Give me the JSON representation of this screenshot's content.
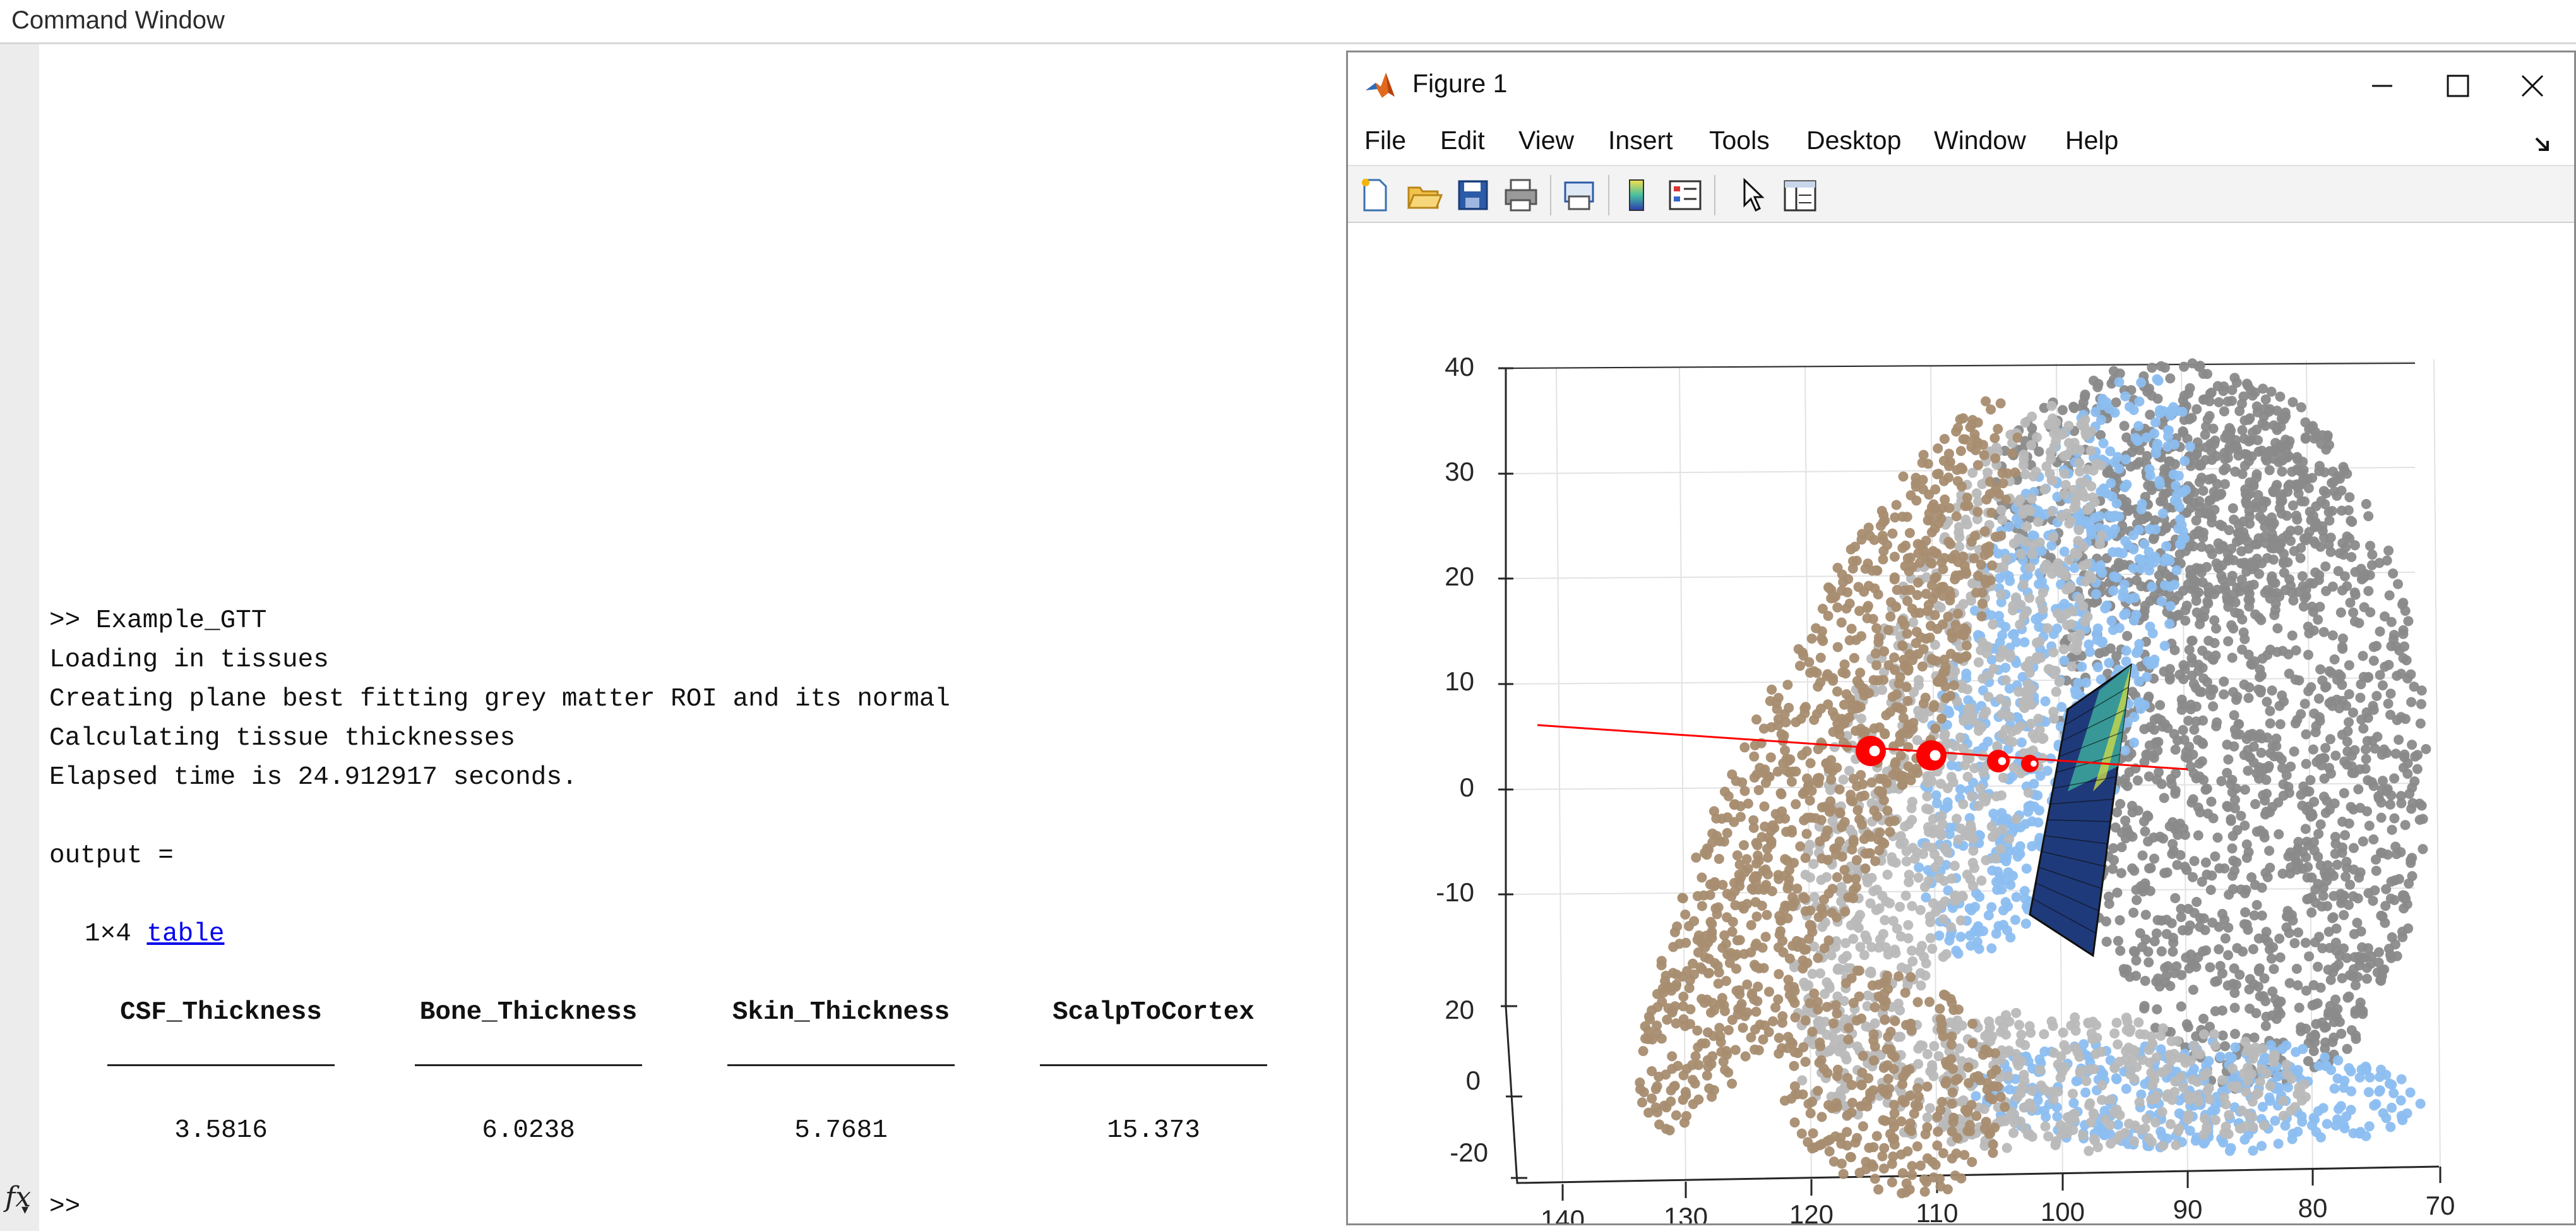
{
  "command_window": {
    "title": "Command Window",
    "lines": [
      ">> Example_GTT",
      "Loading in tissues",
      "Creating plane best fitting grey matter ROI and its normal",
      "Calculating tissue thicknesses",
      "Elapsed time is 24.912917 seconds.",
      "output ="
    ],
    "table_size": "1×4",
    "table_link": "table",
    "table": {
      "headers": [
        "CSF_Thickness",
        "Bone_Thickness",
        "Skin_Thickness",
        "ScalpToCortex"
      ],
      "values": [
        "3.5816",
        "6.0238",
        "5.7681",
        "15.373"
      ]
    },
    "prompt": ">>",
    "fx_icon": "function-browser-icon"
  },
  "figure": {
    "title": "Figure 1",
    "menu": [
      "File",
      "Edit",
      "View",
      "Insert",
      "Tools",
      "Desktop",
      "Window",
      "Help"
    ],
    "toolbar_icons": [
      "new-figure-icon",
      "open-file-icon",
      "save-icon",
      "print-icon",
      "print-preview-icon",
      "insert-colorbar-icon",
      "insert-legend-icon",
      "edit-plot-icon",
      "property-inspector-icon"
    ],
    "window_controls": [
      "minimize-icon",
      "maximize-icon",
      "close-icon"
    ],
    "axes": {
      "z_ticks": [
        "40",
        "30",
        "20",
        "10",
        "0",
        "-10"
      ],
      "y_ticks": [
        "20",
        "0",
        "-20"
      ],
      "x_ticks": [
        "140",
        "130",
        "120",
        "110",
        "100",
        "90",
        "80",
        "70"
      ]
    },
    "colors": {
      "skin": "#a88d70",
      "bone": "#b9b9b9",
      "csf": "#8cbef0",
      "grey_matter": "#8a8a8a",
      "normal_line": "#ff0000"
    }
  }
}
